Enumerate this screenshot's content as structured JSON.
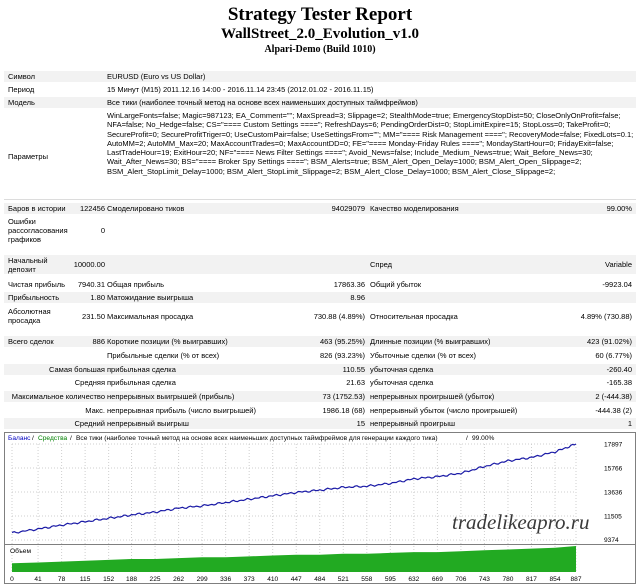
{
  "header": {
    "title": "Strategy Tester Report",
    "ea_name": "WallStreet_2.0_Evolution_v1.0",
    "server": "Alpari-Demo (Build 1010)"
  },
  "info": {
    "symbol_label": "Символ",
    "symbol_value": "EURUSD (Euro vs US Dollar)",
    "period_label": "Период",
    "period_value": "15 Минут (M15) 2011.12.16 14:00 - 2016.11.14 23:45 (2012.01.02 - 2016.11.15)",
    "model_label": "Модель",
    "model_value": "Все тики (наиболее точный метод на основе всех наименьших доступных таймфреймов)",
    "params_label": "Параметры",
    "params_value": "WinLargeFonts=false; Magic=987123; EA_Comment=\"\"; MaxSpread=3; Slippage=2; StealthMode=true; EmergencyStopDist=50; CloseOnlyOnProfit=false; NFA=false; No_Hedge=false; CS=\"==== Custom Settings ====\"; RefreshDays=6; PendingOrderDist=0; StopLimitExpire=15; StopLoss=0; TakeProfit=0; SecureProfit=0; SecureProfitTriger=0; UseCustomPair=false; UseSettingsFrom=\"\"; MM=\"==== Risk Management ====\"; RecoveryMode=false; FixedLots=0.1; AutoMM=2; AutoMM_Max=20; MaxAccountTrades=0; MaxAccountDD=0; FE=\"==== Monday-Friday Rules ====\"; MondayStartHour=0; FridayExit=false; LastTradeHour=19; ExitHour=20; NF=\"==== News Filter Settings ====\"; Avoid_News=false; Include_Medium_News=true; Wait_Before_News=30; Wait_After_News=30; BS=\"==== Broker Spy Settings ====\"; BSM_Alerts=true; BSM_Alert_Open_Delay=1000; BSM_Alert_Open_Slippage=2; BSM_Alert_StopLimit_Delay=1000; BSM_Alert_StopLimit_Slippage=2; BSM_Alert_Close_Delay=1000; BSM_Alert_Close_Slippage=2;"
  },
  "stats": {
    "bars_label": "Баров в истории",
    "bars_value": "122456",
    "ticks_label": "Смоделировано тиков",
    "ticks_value": "94029079",
    "quality_label": "Качество моделирования",
    "quality_value": "99.00%",
    "errors_label": "Ошибки рассогласования графиков",
    "errors_value": "0",
    "deposit_label": "Начальный депозит",
    "deposit_value": "10000.00",
    "spread_label": "Спред",
    "spread_value": "Variable",
    "net_label": "Чистая прибыль",
    "net_value": "7940.31",
    "gross_profit_label": "Общая прибыль",
    "gross_profit_value": "17863.36",
    "gross_loss_label": "Общий убыток",
    "gross_loss_value": "-9923.04",
    "pf_label": "Прибыльность",
    "pf_value": "1.80",
    "expect_label": "Матожидание выигрыша",
    "expect_value": "8.96",
    "abs_dd_label": "Абсолютная просадка",
    "abs_dd_value": "231.50",
    "max_dd_label": "Максимальная просадка",
    "max_dd_value": "730.88 (4.89%)",
    "rel_dd_label": "Относительная просадка",
    "rel_dd_value": "4.89% (730.88)",
    "total_label": "Всего сделок",
    "total_value": "886",
    "short_label": "Короткие позиции (% выигравших)",
    "short_value": "463 (95.25%)",
    "long_label": "Длинные позиции (% выигравших)",
    "long_value": "423 (91.02%)",
    "profit_trades_label": "Прибыльные сделки (% от всех)",
    "profit_trades_value": "826 (93.23%)",
    "loss_trades_label": "Убыточные сделки (% от всех)",
    "loss_trades_value": "60 (6.77%)",
    "largest_label": "Самая большая",
    "avg_label": "Средняя",
    "largest_profit_label": "прибыльная сделка",
    "largest_profit_value": "110.55",
    "largest_loss_label": "убыточная сделка",
    "largest_loss_value": "-260.40",
    "avg_profit_label": "прибыльная сделка",
    "avg_profit_value": "21.63",
    "avg_loss_label": "убыточная сделка",
    "avg_loss_value": "-165.38",
    "max_count_label": "Максимальное количество",
    "max_consec_wins_label": "непрерывных выигрышей (прибыль)",
    "max_consec_wins_value": "73 (1752.53)",
    "max_consec_losses_label": "непрерывных проигрышей (убыток)",
    "max_consec_losses_value": "2 (-444.38)",
    "max_label": "Макс.",
    "max_consec_profit_label": "непрерывная прибыль (число выигрышей)",
    "max_consec_profit_value": "1986.18 (68)",
    "max_consec_loss_label": "непрерывный убыток (число проигрышей)",
    "max_consec_loss_value": "-444.38 (2)",
    "avg_count_label": "Средний",
    "avg_consec_wins_label": "непрерывный выигрыш",
    "avg_consec_wins_value": "15",
    "avg_consec_losses_label": "непрерывный проигрыш",
    "avg_consec_losses_value": "1"
  },
  "chart_data": {
    "type": "line",
    "legend_balance": "Баланс",
    "legend_equity": "Средства",
    "legend_desc": "Все тики (наиболее точный метод на основе всех наименьших доступных таймфреймов для генерации каждого тика)",
    "legend_quality": "99.00%",
    "volume_label": "Объем",
    "y_ticks": [
      "17897",
      "15766",
      "13636",
      "11505",
      "9374"
    ],
    "x_ticks": [
      "0",
      "41",
      "78",
      "115",
      "152",
      "188",
      "225",
      "262",
      "299",
      "336",
      "373",
      "410",
      "447",
      "484",
      "521",
      "558",
      "595",
      "632",
      "669",
      "706",
      "743",
      "780",
      "817",
      "854",
      "887"
    ],
    "ylim": [
      9374,
      17897
    ],
    "xlim": [
      0,
      887
    ],
    "x": [
      0,
      41,
      78,
      115,
      152,
      188,
      225,
      262,
      299,
      336,
      373,
      410,
      447,
      484,
      521,
      558,
      595,
      632,
      669,
      706,
      743,
      780,
      817,
      854,
      887
    ],
    "balance": [
      10000,
      10350,
      10700,
      11000,
      11300,
      11600,
      11850,
      12200,
      12400,
      12700,
      13000,
      13300,
      13600,
      13800,
      14050,
      14150,
      14400,
      14800,
      15000,
      15300,
      15900,
      16400,
      16700,
      17200,
      17897
    ],
    "volume": [
      0.1,
      0.11,
      0.12,
      0.13,
      0.14,
      0.15,
      0.15,
      0.16,
      0.17,
      0.17,
      0.18,
      0.19,
      0.2,
      0.2,
      0.21,
      0.21,
      0.22,
      0.23,
      0.23,
      0.24,
      0.25,
      0.26,
      0.27,
      0.28,
      0.3
    ],
    "colors": {
      "balance": "#1a1aa6",
      "equity": "#00a000",
      "volume": "#22aa22",
      "legend_balance": "#0000c0",
      "legend_equity": "#008000"
    }
  },
  "watermark": "tradelikeapro.ru"
}
